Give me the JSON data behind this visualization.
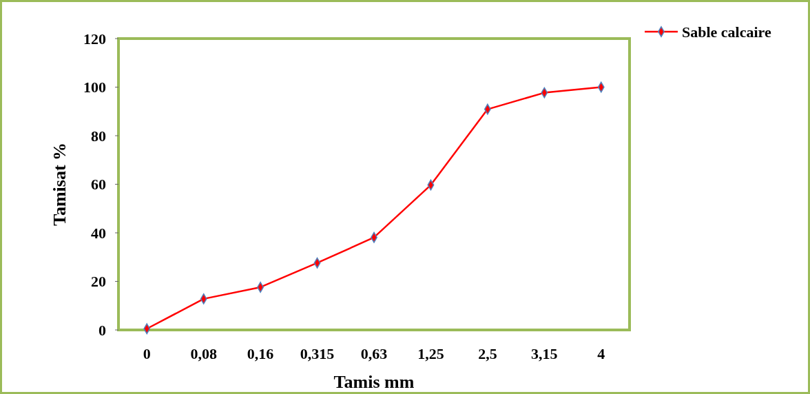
{
  "chart_data": {
    "type": "line",
    "xlabel": "Tamis mm",
    "ylabel": "Tamisat %",
    "categories": [
      "0",
      "0,08",
      "0,16",
      "0,315",
      "0,63",
      "1,25",
      "2,5",
      "3,15",
      "4"
    ],
    "series": [
      {
        "name": "Sable calcaire",
        "color": "#ff0000",
        "values": [
          0.5,
          12.8,
          17.6,
          27.6,
          38.1,
          59.7,
          90.9,
          97.7,
          100
        ]
      }
    ],
    "ylim": [
      0,
      120
    ],
    "yticks": [
      0,
      20,
      40,
      60,
      80,
      100,
      120
    ],
    "grid": false,
    "legend": "top right",
    "marker": "diamond",
    "line_style": "solid"
  }
}
